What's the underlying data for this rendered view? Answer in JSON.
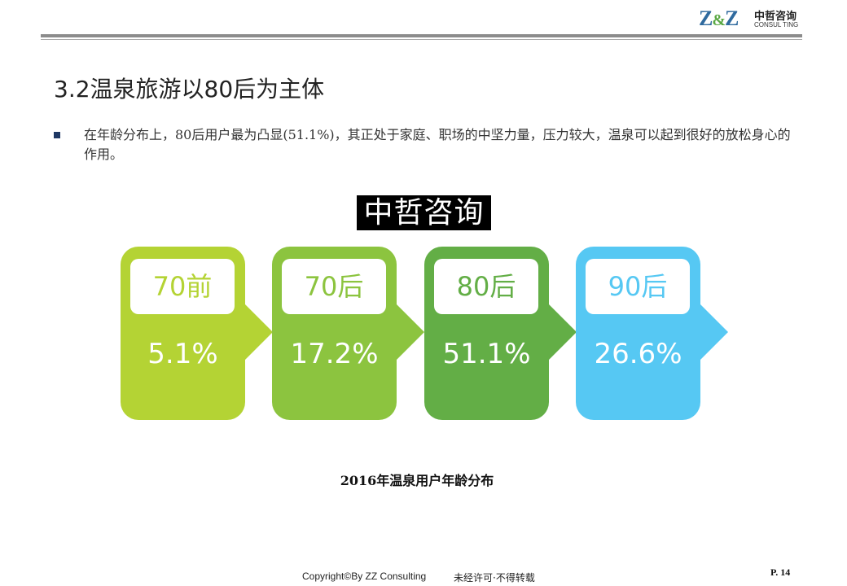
{
  "header": {
    "logo_mark": "Z&Z",
    "logo_cn": "中哲咨询",
    "logo_en": "CONSUL TING"
  },
  "title": "3.2温泉旅游以80后为主体",
  "bullet_text": "在年龄分布上，80后用户最为凸显(51.1%)，其正处于家庭、职场的中坚力量，压力较大，温泉可以起到很好的放松身心的作用。",
  "cards": [
    {
      "label": "70前",
      "value": "5.1%",
      "color": "#b4d334"
    },
    {
      "label": "70后",
      "value": "17.2%",
      "color": "#8cc43f"
    },
    {
      "label": "80后",
      "value": "51.1%",
      "color": "#63ae46"
    },
    {
      "label": "90后",
      "value": "26.6%",
      "color": "#56c8f3"
    }
  ],
  "watermark": "中哲咨询",
  "caption": "2016年温泉用户年龄分布",
  "footer": {
    "copyright": "Copyright©By  ZZ Consulting",
    "notice": "未经许可·不得转载",
    "page": "P. 14"
  }
}
